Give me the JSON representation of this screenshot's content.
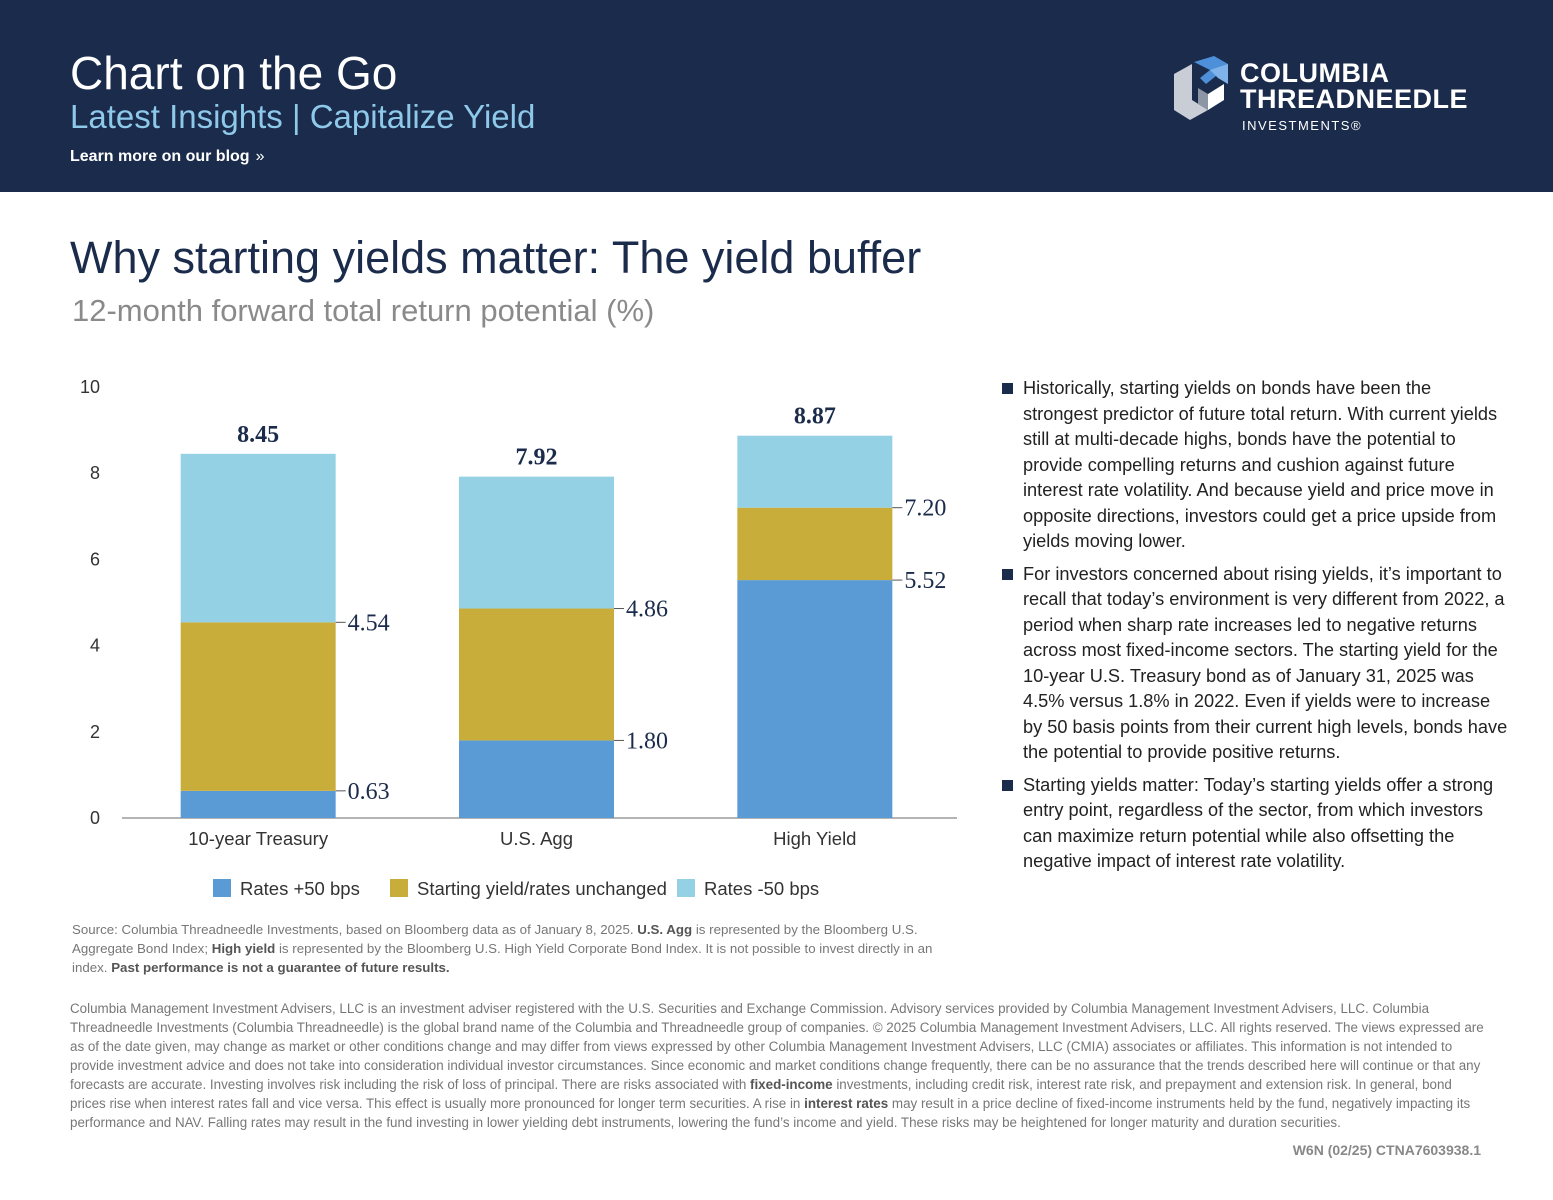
{
  "header": {
    "title": "Chart on the Go",
    "subtitle": "Latest Insights | Capitalize Yield",
    "blog_link": "Learn more on our blog",
    "blog_chevron": "»",
    "logo_line1": "COLUMBIA",
    "logo_line2": "THREADNEEDLE",
    "logo_line3": "INVESTMENTS®",
    "colors": {
      "background": "#1b2b4b",
      "accent": "#8ec9ea"
    }
  },
  "main": {
    "title": "Why starting yields matter: The yield buffer",
    "subtitle": "12-month forward total return potential (%)"
  },
  "chart_data": {
    "type": "bar",
    "stacked": true,
    "categories": [
      "10-year Treasury",
      "U.S. Agg",
      "High Yield"
    ],
    "ylim": [
      0,
      10
    ],
    "yticks": [
      0,
      2,
      4,
      6,
      8,
      10
    ],
    "series": [
      {
        "name": "Rates +50 bps",
        "color": "#5b9bd5",
        "values": [
          0.63,
          1.8,
          5.52
        ]
      },
      {
        "name": "Starting yield/rates unchanged",
        "color": "#c9ad3a",
        "values": [
          3.91,
          3.06,
          1.68
        ]
      },
      {
        "name": "Rates -50 bps",
        "color": "#95d1e4",
        "values": [
          3.91,
          3.06,
          1.67
        ]
      }
    ],
    "data_labels": {
      "rates_up": [
        "0.63",
        "1.80",
        "5.52"
      ],
      "unchanged": [
        "4.54",
        "4.86",
        "7.20"
      ],
      "rates_down": [
        "8.45",
        "7.92",
        "8.87"
      ]
    },
    "legend_position": "bottom",
    "grid": false
  },
  "bullets": [
    "Historically, starting yields on bonds have been the strongest predictor of future total return. With current yields still at multi-decade highs, bonds have the potential to provide compelling returns and cushion against future interest rate volatility. And because yield and price move in opposite directions, investors could get a price upside from yields moving lower.",
    "For investors concerned about rising yields, it’s important to recall that today’s environment is very different from 2022, a period when sharp rate increases led to negative returns across most fixed-income sectors. The starting yield for the 10-year U.S. Treasury bond as of January 31, 2025 was 4.5% versus 1.8% in 2022. Even if yields were to increase by 50 basis points from their current high levels, bonds have the potential to provide positive returns.",
    "Starting yields matter: Today’s starting yields offer a strong entry point, regardless of the sector, from which investors can maximize return potential while also offsetting the negative impact of interest rate volatility."
  ],
  "source": {
    "part1": "Source: Columbia Threadneedle Investments, based on Bloomberg data as of January 8, 2025. ",
    "agg_bold": "U.S. Agg",
    "part2": " is represented by the Bloomberg U.S. Aggregate Bond Index; ",
    "hy_bold": "High yield",
    "part3": " is represented by the Bloomberg U.S. High Yield Corporate Bond Index. It is not possible to invest directly in an index. ",
    "past_bold": "Past performance is not a guarantee of future results."
  },
  "disclaimer": {
    "part1": "Columbia Management Investment Advisers, LLC is an investment adviser registered with the U.S. Securities and Exchange Commission. Advisory services provided by Columbia Management Investment Advisers, LLC. Columbia Threadneedle Investments (Columbia Threadneedle) is the global brand name of the Columbia and Threadneedle group of companies. © 2025 Columbia Management Investment Advisers, LLC. All rights reserved. The views expressed are as of the date given, may change as market or other conditions change and may differ from views expressed by other Columbia Management Investment Advisers, LLC (CMIA) associates or affiliates. This information is not intended to provide investment advice and does not take into consideration individual investor circumstances. Since economic and market conditions change frequently, there can be no assurance that the trends described here will continue or that any forecasts are accurate. Investing involves risk including the risk of loss of principal. There are risks associated with ",
    "fixed_bold": "fixed-income",
    "part2": " investments, including credit risk, interest rate risk, and prepayment and extension risk. In general, bond prices rise when interest rates fall and vice versa. This effect is usually more pronounced for longer term securities. A rise in ",
    "rates_bold": "interest rates",
    "part3": " may result in a price decline of fixed-income instruments held by the fund, negatively impacting its performance and NAV. Falling rates may result in the fund investing in lower yielding debt instruments, lowering the fund’s income and yield. These risks may be heightened for longer maturity and duration securities.",
    "code": "W6N (02/25) CTNA7603938.1"
  }
}
